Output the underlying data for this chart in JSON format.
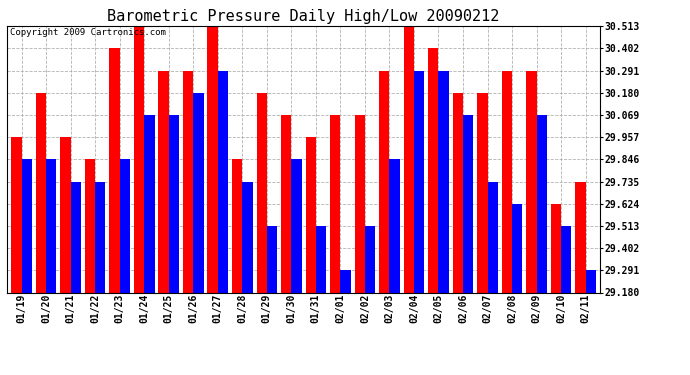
{
  "title": "Barometric Pressure Daily High/Low 20090212",
  "copyright": "Copyright 2009 Cartronics.com",
  "dates": [
    "01/19",
    "01/20",
    "01/21",
    "01/22",
    "01/23",
    "01/24",
    "01/25",
    "01/26",
    "01/27",
    "01/28",
    "01/29",
    "01/30",
    "01/31",
    "02/01",
    "02/02",
    "02/03",
    "02/04",
    "02/05",
    "02/06",
    "02/07",
    "02/08",
    "02/09",
    "02/10",
    "02/11"
  ],
  "highs": [
    29.957,
    30.18,
    29.957,
    29.846,
    30.402,
    30.513,
    30.291,
    30.291,
    30.513,
    29.846,
    30.18,
    30.069,
    29.957,
    30.069,
    30.069,
    30.291,
    30.513,
    30.402,
    30.18,
    30.18,
    30.291,
    30.291,
    29.624,
    29.735
  ],
  "lows": [
    29.846,
    29.846,
    29.735,
    29.735,
    29.846,
    30.069,
    30.069,
    30.18,
    30.291,
    29.735,
    29.513,
    29.846,
    29.513,
    29.291,
    29.513,
    29.846,
    30.291,
    30.291,
    30.069,
    29.735,
    29.624,
    30.069,
    29.513,
    29.291
  ],
  "ymin": 29.18,
  "ymax": 30.513,
  "yticks": [
    29.18,
    29.291,
    29.402,
    29.513,
    29.624,
    29.735,
    29.846,
    29.957,
    30.069,
    30.18,
    30.291,
    30.402,
    30.513
  ],
  "bar_width": 0.42,
  "high_color": "#ff0000",
  "low_color": "#0000ff",
  "bg_color": "#ffffff",
  "grid_color": "#aaaaaa",
  "title_fontsize": 11,
  "tick_fontsize": 7,
  "copyright_fontsize": 6.5
}
